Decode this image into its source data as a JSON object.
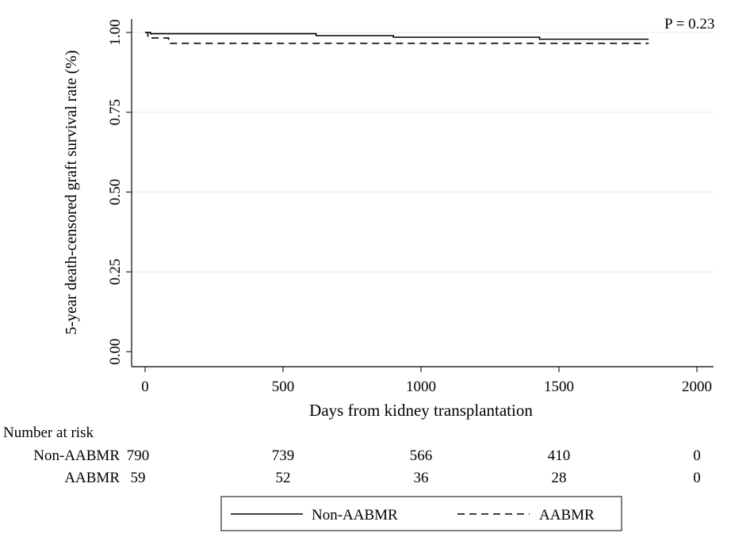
{
  "chart_data": {
    "type": "line",
    "title": "",
    "xlabel": "Days from kidney transplantation",
    "ylabel": "5-year death-censored graft survival rate (%)",
    "xlim": [
      0,
      2000
    ],
    "ylim": [
      0,
      1
    ],
    "x_ticks": [
      0,
      500,
      1000,
      1500,
      2000
    ],
    "x_tick_labels": [
      "0",
      "500",
      "1000",
      "1500",
      "2000"
    ],
    "y_ticks": [
      0,
      0.25,
      0.5,
      0.75,
      1.0
    ],
    "y_tick_labels": [
      "0.00",
      "0.25",
      "0.50",
      "0.75",
      "1.00"
    ],
    "grid": "horizontal",
    "annotation": "P = 0.23",
    "series": [
      {
        "name": "Non-AABMR",
        "style": "solid",
        "color": "#000000",
        "x": [
          0,
          20,
          20,
          620,
          620,
          900,
          900,
          1430,
          1430,
          1825
        ],
        "y": [
          1.0,
          1.0,
          0.996,
          0.996,
          0.99,
          0.99,
          0.985,
          0.985,
          0.979,
          0.979
        ]
      },
      {
        "name": "AABMR",
        "style": "dashed",
        "color": "#000000",
        "x": [
          0,
          10,
          10,
          85,
          85,
          1825
        ],
        "y": [
          1.0,
          1.0,
          0.983,
          0.983,
          0.966,
          0.966
        ]
      }
    ],
    "risk_table": {
      "heading": "Number at risk",
      "times": [
        0,
        500,
        1000,
        1500,
        2000
      ],
      "rows": [
        {
          "label": "Non-AABMR",
          "values": [
            "790",
            "739",
            "566",
            "410",
            "0"
          ]
        },
        {
          "label": "AABMR",
          "values": [
            "59",
            "52",
            "36",
            "28",
            "0"
          ]
        }
      ]
    },
    "legend": {
      "position": "bottom-center",
      "entries": [
        {
          "label": "Non-AABMR",
          "style": "solid"
        },
        {
          "label": "AABMR",
          "style": "dashed"
        }
      ]
    }
  }
}
